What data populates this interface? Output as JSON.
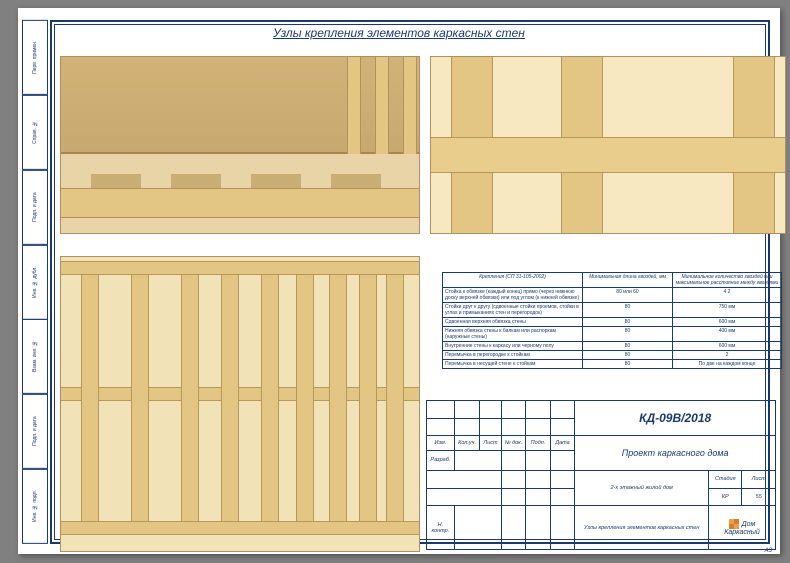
{
  "page": {
    "title": "Узлы крепления элементов каркасных стен",
    "format_label": "A3",
    "background": "#808080",
    "paper": "#ffffff",
    "frame_color": "#1a3a6e"
  },
  "side_strip": [
    "Инв. № подл.",
    "Подп. и дата",
    "Взам. инв. №",
    "Инв. № дубл.",
    "Подп. и дата",
    "Справ. №",
    "Перв. примен."
  ],
  "spec_table": {
    "headers": [
      "Крепления (СП 31-105-2002)",
      "Минимальная длина гвоздей, мм",
      "Минимальное количество гвоздей или максимальное расстояние между гвоздями"
    ],
    "rows": [
      [
        "Стойка к обвязке (каждый конец) прямо (через нижнюю доску верхней обвязки) или под углом (к нижней обвязке)",
        "80 или 60",
        "4\n2"
      ],
      [
        "Стойки друг к другу (сдвоенные стойки проемов, стойки в углах и примыканиях стен и перегородок)",
        "80",
        "750 мм"
      ],
      [
        "Сдвоенная верхняя обвязка стены",
        "80",
        "600 мм"
      ],
      [
        "Нижняя обвязка стены к балкам или распоркам (наружные стены)",
        "80",
        "400 мм"
      ],
      [
        "Внутренние стены к каркасу или черному полу",
        "80",
        "600 мм"
      ],
      [
        "Перемычка в перегородке к стойкам",
        "80",
        "2"
      ],
      [
        "Перемычка в несущей стене к стойкам",
        "80",
        "По две на каждом конце"
      ]
    ]
  },
  "title_block": {
    "doc_number": "КД-09В/2018",
    "project": "Проект каркасного дома",
    "object": "2-х этажный жилой дом",
    "sheet_title": "Узлы крепления элементов каркасных стен",
    "stage_label": "Стадия",
    "sheet_label": "Лист",
    "sheets_label": "Листов",
    "stage": "КР",
    "sheet_no": "55",
    "sheets_total": "00",
    "company": "Дом Каркасный",
    "small_cols": [
      "Изм.",
      "Кол.уч.",
      "Лист",
      "№ док.",
      "Подп.",
      "Дата"
    ],
    "roles": [
      "Разраб.",
      "",
      "",
      "Н. контр."
    ]
  },
  "wood_colors": {
    "light": "#e8d4a8",
    "mid": "#e4c684",
    "dark": "#c9ad72",
    "edge": "#b89858"
  }
}
